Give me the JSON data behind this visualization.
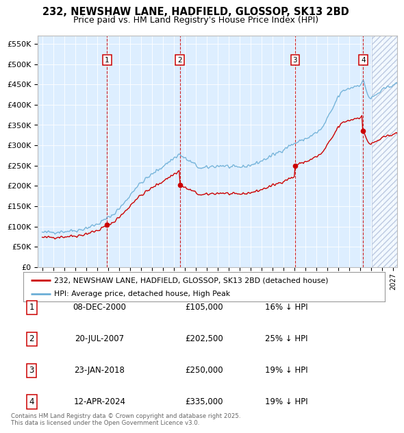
{
  "title_line1": "232, NEWSHAW LANE, HADFIELD, GLOSSOP, SK13 2BD",
  "title_line2": "Price paid vs. HM Land Registry's House Price Index (HPI)",
  "ylim": [
    0,
    570000
  ],
  "yticks": [
    0,
    50000,
    100000,
    150000,
    200000,
    250000,
    300000,
    350000,
    400000,
    450000,
    500000,
    550000
  ],
  "ytick_labels": [
    "£0",
    "£50K",
    "£100K",
    "£150K",
    "£200K",
    "£250K",
    "£300K",
    "£350K",
    "£400K",
    "£450K",
    "£500K",
    "£550K"
  ],
  "hpi_color": "#6baed6",
  "price_color": "#cc0000",
  "vline_color": "#cc0000",
  "background_color": "#ddeeff",
  "sale_points": [
    {
      "label": 1,
      "year": 2000.92,
      "price": 105000
    },
    {
      "label": 2,
      "year": 2007.55,
      "price": 202500
    },
    {
      "label": 3,
      "year": 2018.07,
      "price": 250000
    },
    {
      "label": 4,
      "year": 2024.28,
      "price": 335000
    }
  ],
  "legend_entries": [
    "232, NEWSHAW LANE, HADFIELD, GLOSSOP, SK13 2BD (detached house)",
    "HPI: Average price, detached house, High Peak"
  ],
  "table_entries": [
    {
      "num": 1,
      "date": "08-DEC-2000",
      "price": "£105,000",
      "pct": "16% ↓ HPI"
    },
    {
      "num": 2,
      "date": "20-JUL-2007",
      "price": "£202,500",
      "pct": "25% ↓ HPI"
    },
    {
      "num": 3,
      "date": "23-JAN-2018",
      "price": "£250,000",
      "pct": "19% ↓ HPI"
    },
    {
      "num": 4,
      "date": "12-APR-2024",
      "price": "£335,000",
      "pct": "19% ↓ HPI"
    }
  ],
  "footer": "Contains HM Land Registry data © Crown copyright and database right 2025.\nThis data is licensed under the Open Government Licence v3.0."
}
